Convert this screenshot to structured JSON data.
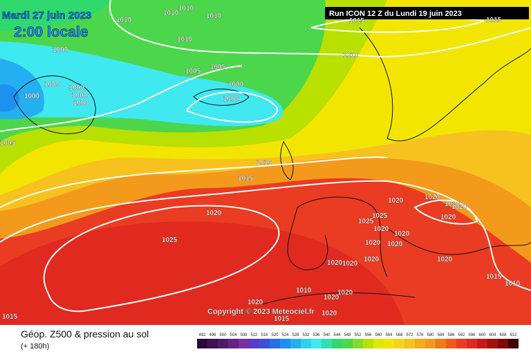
{
  "header": {
    "date": "Mardi 27 juin 2023",
    "time": "2:00 locale",
    "run": "Run ICON 12 Z du Lundi 19 juin 2023"
  },
  "copyright": "Copyright © 2023 Meteociel.fr",
  "isobar_labels": [
    "1010",
    "1010",
    "1010",
    "1010",
    "1010",
    "1015",
    "1015",
    "1000",
    "1005",
    "1005",
    "1010",
    "1000",
    "1000",
    "1000",
    "1000",
    "1000",
    "1000",
    "1000",
    "1005",
    "1010",
    "1015",
    "1020",
    "1025",
    "1020",
    "1020",
    "1020",
    "1020",
    "1020",
    "1025",
    "1025",
    "1020",
    "1020",
    "1020",
    "1020",
    "1020",
    "1020",
    "1020",
    "1015",
    "1010",
    "1010",
    "1020",
    "1020",
    "1020",
    "1015",
    "1020",
    "1015",
    "1020"
  ],
  "footer": {
    "title": "Géop. Z500 & pression au sol",
    "subtitle": "(+ 180h)"
  },
  "colorbar": {
    "ticks": [
      492,
      496,
      500,
      504,
      508,
      512,
      516,
      520,
      524,
      528,
      532,
      536,
      540,
      544,
      548,
      552,
      556,
      560,
      564,
      568,
      572,
      576,
      580,
      584,
      588,
      592,
      596,
      600,
      604,
      608,
      612
    ],
    "colors": [
      "#2a0a3a",
      "#3c1450",
      "#501c6a",
      "#642484",
      "#7a2ea0",
      "#5a3cc8",
      "#3c50dc",
      "#2a6ee8",
      "#1e90f0",
      "#24b0f0",
      "#30d0f0",
      "#40e8f0",
      "#30e0b0",
      "#30d870",
      "#4cd64c",
      "#80dc30",
      "#b8e000",
      "#dcea00",
      "#f2e600",
      "#f7d21f",
      "#f7c21f",
      "#f5ab1c",
      "#f39a1c",
      "#f07a1c",
      "#f05a1e",
      "#ea3c22",
      "#e02a20",
      "#c81818",
      "#a81010",
      "#800808",
      "#400000"
    ]
  }
}
